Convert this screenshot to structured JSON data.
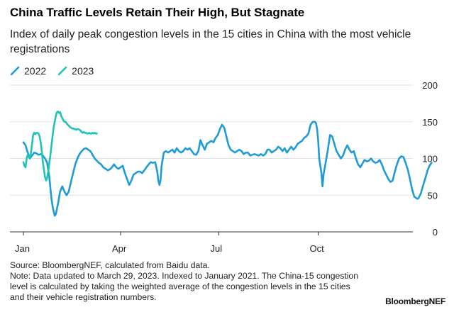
{
  "header": {
    "title": "China Traffic Levels Retain Their High, But Stagnate",
    "subtitle": "Index of daily peak congestion levels in the 15 cities in China with the most vehicle registrations"
  },
  "footer": {
    "source": "Source: BloombergNEF, calculated from Baidu data.",
    "note": "Note: Data updated to March 29, 2023. Indexed to January 2021. The China-15 congestion level is calculated by taking the weighted average of the congestion levels in the 15 cities and their vehicle registration numbers.",
    "brand": "BloombergNEF"
  },
  "chart_data": {
    "type": "line",
    "title": "China Traffic Levels Retain Their High, But Stagnate",
    "subtitle": "Index of daily peak congestion levels in the 15 cities in China with the most vehicle registrations",
    "x_ticks": [
      {
        "label": "Jan",
        "day": 1
      },
      {
        "label": "Apr",
        "day": 91
      },
      {
        "label": "Jul",
        "day": 182
      },
      {
        "label": "Oct",
        "day": 274
      }
    ],
    "xlim": [
      1,
      365
    ],
    "y_ticks": [
      0,
      50,
      100,
      150,
      200
    ],
    "ylim": [
      0,
      200
    ],
    "legend_position": "top-left",
    "grid": "horizontal",
    "series": [
      {
        "name": "2022",
        "color": "#1f9bd7",
        "points": [
          [
            1,
            122
          ],
          [
            3,
            118
          ],
          [
            5,
            108
          ],
          [
            7,
            100
          ],
          [
            9,
            104
          ],
          [
            11,
            108
          ],
          [
            13,
            107
          ],
          [
            15,
            105
          ],
          [
            17,
            106
          ],
          [
            19,
            104
          ],
          [
            21,
            100
          ],
          [
            23,
            94
          ],
          [
            25,
            75
          ],
          [
            26,
            60
          ],
          [
            27,
            45
          ],
          [
            28,
            35
          ],
          [
            29,
            28
          ],
          [
            30,
            22
          ],
          [
            31,
            24
          ],
          [
            33,
            38
          ],
          [
            35,
            55
          ],
          [
            37,
            62
          ],
          [
            39,
            55
          ],
          [
            41,
            50
          ],
          [
            43,
            55
          ],
          [
            45,
            68
          ],
          [
            47,
            80
          ],
          [
            49,
            92
          ],
          [
            51,
            100
          ],
          [
            53,
            106
          ],
          [
            55,
            110
          ],
          [
            57,
            113
          ],
          [
            59,
            114
          ],
          [
            61,
            112
          ],
          [
            63,
            110
          ],
          [
            65,
            105
          ],
          [
            67,
            100
          ],
          [
            69,
            97
          ],
          [
            71,
            94
          ],
          [
            73,
            92
          ],
          [
            75,
            88
          ],
          [
            77,
            86
          ],
          [
            79,
            84
          ],
          [
            81,
            85
          ],
          [
            83,
            88
          ],
          [
            85,
            92
          ],
          [
            87,
            88
          ],
          [
            89,
            86
          ],
          [
            91,
            88
          ],
          [
            93,
            90
          ],
          [
            95,
            80
          ],
          [
            97,
            72
          ],
          [
            99,
            64
          ],
          [
            101,
            70
          ],
          [
            103,
            78
          ],
          [
            105,
            80
          ],
          [
            107,
            82
          ],
          [
            109,
            82
          ],
          [
            111,
            80
          ],
          [
            113,
            84
          ],
          [
            115,
            88
          ],
          [
            117,
            92
          ],
          [
            119,
            95
          ],
          [
            121,
            94
          ],
          [
            123,
            95
          ],
          [
            125,
            82
          ],
          [
            126,
            70
          ],
          [
            127,
            64
          ],
          [
            128,
            70
          ],
          [
            129,
            90
          ],
          [
            131,
            108
          ],
          [
            133,
            110
          ],
          [
            135,
            108
          ],
          [
            137,
            110
          ],
          [
            139,
            112
          ],
          [
            141,
            108
          ],
          [
            143,
            114
          ],
          [
            145,
            110
          ],
          [
            147,
            108
          ],
          [
            149,
            110
          ],
          [
            151,
            114
          ],
          [
            153,
            112
          ],
          [
            155,
            114
          ],
          [
            157,
            110
          ],
          [
            159,
            106
          ],
          [
            161,
            105
          ],
          [
            163,
            110
          ],
          [
            165,
            125
          ],
          [
            167,
            118
          ],
          [
            169,
            112
          ],
          [
            171,
            120
          ],
          [
            173,
            122
          ],
          [
            175,
            124
          ],
          [
            177,
            122
          ],
          [
            179,
            128
          ],
          [
            181,
            132
          ],
          [
            183,
            140
          ],
          [
            185,
            146
          ],
          [
            187,
            142
          ],
          [
            189,
            130
          ],
          [
            191,
            118
          ],
          [
            193,
            112
          ],
          [
            195,
            110
          ],
          [
            197,
            108
          ],
          [
            199,
            110
          ],
          [
            201,
            112
          ],
          [
            203,
            110
          ],
          [
            205,
            106
          ],
          [
            207,
            108
          ],
          [
            209,
            108
          ],
          [
            211,
            104
          ],
          [
            213,
            105
          ],
          [
            215,
            106
          ],
          [
            217,
            105
          ],
          [
            219,
            104
          ],
          [
            221,
            106
          ],
          [
            223,
            104
          ],
          [
            225,
            106
          ],
          [
            227,
            112
          ],
          [
            229,
            112
          ],
          [
            231,
            108
          ],
          [
            233,
            110
          ],
          [
            235,
            112
          ],
          [
            237,
            116
          ],
          [
            239,
            114
          ],
          [
            241,
            110
          ],
          [
            243,
            114
          ],
          [
            245,
            108
          ],
          [
            247,
            112
          ],
          [
            249,
            116
          ],
          [
            251,
            112
          ],
          [
            253,
            115
          ],
          [
            255,
            120
          ],
          [
            257,
            122
          ],
          [
            259,
            124
          ],
          [
            261,
            128
          ],
          [
            263,
            130
          ],
          [
            265,
            134
          ],
          [
            267,
            146
          ],
          [
            269,
            150
          ],
          [
            271,
            150
          ],
          [
            272,
            148
          ],
          [
            273,
            140
          ],
          [
            274,
            125
          ],
          [
            275,
            100
          ],
          [
            277,
            80
          ],
          [
            278,
            62
          ],
          [
            279,
            78
          ],
          [
            281,
            95
          ],
          [
            283,
            112
          ],
          [
            285,
            132
          ],
          [
            287,
            130
          ],
          [
            289,
            120
          ],
          [
            291,
            110
          ],
          [
            293,
            105
          ],
          [
            295,
            100
          ],
          [
            297,
            104
          ],
          [
            299,
            112
          ],
          [
            301,
            118
          ],
          [
            303,
            112
          ],
          [
            305,
            108
          ],
          [
            307,
            110
          ],
          [
            309,
            100
          ],
          [
            311,
            92
          ],
          [
            313,
            88
          ],
          [
            315,
            93
          ],
          [
            317,
            98
          ],
          [
            319,
            96
          ],
          [
            321,
            97
          ],
          [
            323,
            100
          ],
          [
            325,
            96
          ],
          [
            327,
            94
          ],
          [
            329,
            95
          ],
          [
            331,
            98
          ],
          [
            333,
            92
          ],
          [
            335,
            84
          ],
          [
            337,
            78
          ],
          [
            339,
            72
          ],
          [
            341,
            68
          ],
          [
            343,
            70
          ],
          [
            345,
            82
          ],
          [
            347,
            92
          ],
          [
            349,
            100
          ],
          [
            351,
            103
          ],
          [
            353,
            102
          ],
          [
            355,
            94
          ],
          [
            357,
            85
          ],
          [
            359,
            72
          ],
          [
            361,
            58
          ],
          [
            363,
            48
          ],
          [
            365,
            46
          ],
          [
            366,
            45
          ],
          [
            367,
            46
          ],
          [
            369,
            52
          ],
          [
            371,
            62
          ],
          [
            373,
            72
          ],
          [
            375,
            82
          ],
          [
            377,
            90
          ],
          [
            379,
            94
          ]
        ]
      },
      {
        "name": "2023",
        "color": "#20c4b4",
        "points": [
          [
            1,
            95
          ],
          [
            2,
            90
          ],
          [
            3,
            88
          ],
          [
            4,
            100
          ],
          [
            5,
            105
          ],
          [
            6,
            102
          ],
          [
            7,
            100
          ],
          [
            8,
            108
          ],
          [
            9,
            120
          ],
          [
            10,
            132
          ],
          [
            11,
            135
          ],
          [
            12,
            133
          ],
          [
            13,
            135
          ],
          [
            14,
            135
          ],
          [
            15,
            134
          ],
          [
            16,
            130
          ],
          [
            17,
            122
          ],
          [
            18,
            110
          ],
          [
            19,
            95
          ],
          [
            20,
            85
          ],
          [
            21,
            75
          ],
          [
            22,
            70
          ],
          [
            23,
            74
          ],
          [
            24,
            82
          ],
          [
            25,
            94
          ],
          [
            26,
            104
          ],
          [
            27,
            118
          ],
          [
            28,
            130
          ],
          [
            29,
            142
          ],
          [
            30,
            150
          ],
          [
            31,
            158
          ],
          [
            32,
            163
          ],
          [
            33,
            164
          ],
          [
            34,
            162
          ],
          [
            35,
            163
          ],
          [
            36,
            158
          ],
          [
            37,
            155
          ],
          [
            38,
            152
          ],
          [
            39,
            150
          ],
          [
            40,
            150
          ],
          [
            41,
            148
          ],
          [
            42,
            146
          ],
          [
            43,
            145
          ],
          [
            44,
            143
          ],
          [
            45,
            142
          ],
          [
            46,
            141
          ],
          [
            47,
            141
          ],
          [
            48,
            140
          ],
          [
            49,
            140
          ],
          [
            50,
            139
          ],
          [
            51,
            140
          ],
          [
            52,
            140
          ],
          [
            53,
            139
          ],
          [
            54,
            138
          ],
          [
            55,
            136
          ],
          [
            56,
            135
          ],
          [
            57,
            136
          ],
          [
            58,
            135
          ],
          [
            59,
            135
          ],
          [
            60,
            134
          ],
          [
            61,
            134
          ],
          [
            62,
            135
          ],
          [
            63,
            134
          ],
          [
            64,
            134
          ],
          [
            65,
            135
          ],
          [
            66,
            134
          ],
          [
            67,
            135
          ],
          [
            68,
            134
          ],
          [
            69,
            134
          ]
        ]
      }
    ]
  }
}
